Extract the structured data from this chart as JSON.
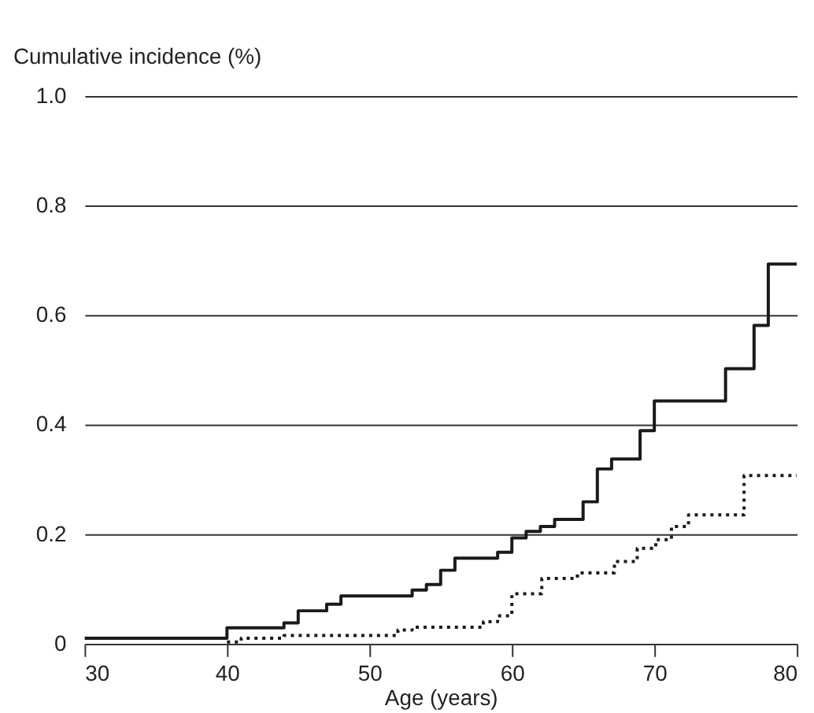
{
  "chart_data": {
    "type": "step",
    "xlabel": "Age (years)",
    "ylabel": "Cumulative incidence (%)",
    "xlim": [
      30,
      80
    ],
    "xticks": [
      30,
      40,
      50,
      60,
      70,
      80
    ],
    "ylim": [
      0,
      1
    ],
    "yticks": [
      0,
      0.2,
      0.4,
      0.6,
      0.8,
      {
        "value": 1,
        "label": "1.0"
      }
    ],
    "grid": "y",
    "series": [
      {
        "color": "#1a1a1a",
        "line_style": "solid",
        "x": [
          30,
          40,
          44,
          45,
          47,
          48,
          53,
          54,
          55,
          56,
          59,
          60,
          61,
          62,
          63,
          65,
          66,
          67,
          69,
          70,
          75,
          77,
          78,
          80
        ],
        "values": [
          0.01,
          0.029,
          0.038,
          0.06,
          0.072,
          0.087,
          0.098,
          0.108,
          0.134,
          0.156,
          0.167,
          0.193,
          0.205,
          0.214,
          0.227,
          0.259,
          0.319,
          0.337,
          0.389,
          0.443,
          0.502,
          0.581,
          0.693,
          0.693
        ]
      },
      {
        "color": "#1a1a1a",
        "line_style": "dotted",
        "x": [
          40,
          41,
          44,
          52,
          53,
          58,
          59,
          60,
          62.1,
          64.6,
          67.2,
          68.8,
          70.1,
          71.2,
          72.4,
          76.3,
          80
        ],
        "values": [
          0.003,
          0.01,
          0.015,
          0.025,
          0.03,
          0.04,
          0.051,
          0.091,
          0.119,
          0.129,
          0.15,
          0.174,
          0.19,
          0.214,
          0.235,
          0.307,
          0.307
        ]
      }
    ]
  }
}
